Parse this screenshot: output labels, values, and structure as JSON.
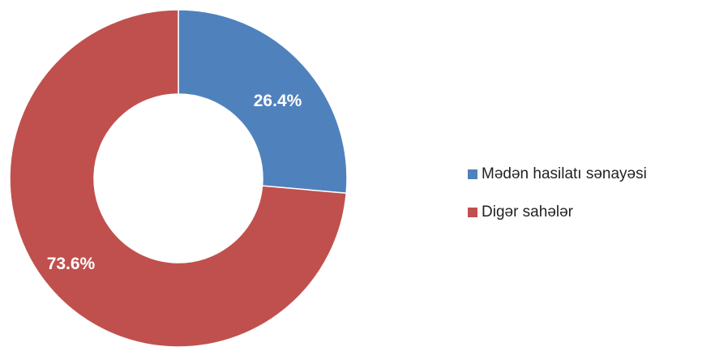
{
  "chart_data": {
    "type": "donut",
    "categories": [
      "Mədən hasilatı sənayəsi",
      "Digər sahələr"
    ],
    "values": [
      26.4,
      73.6
    ],
    "value_labels": [
      "26.4%",
      "73.6%"
    ],
    "colors": [
      "#4f81bd",
      "#c0504d"
    ],
    "legend": "right"
  }
}
